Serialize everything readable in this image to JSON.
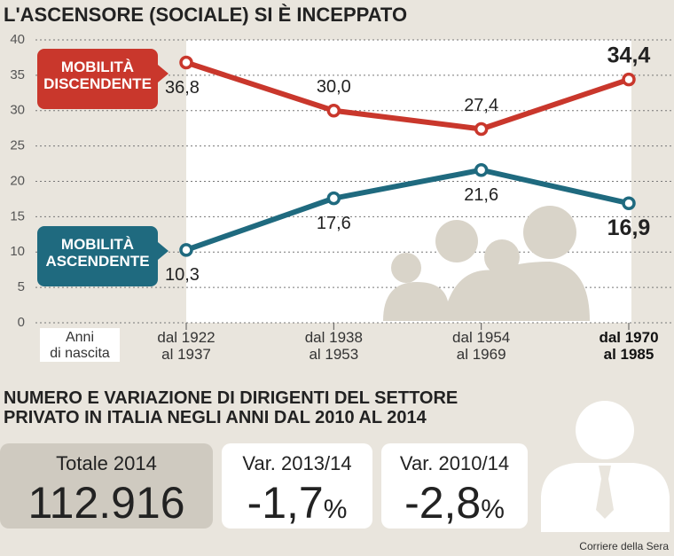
{
  "chart_data": {
    "type": "line",
    "title": "L'ASCENSORE (SOCIALE) SI È INCEPPATO",
    "xlabel": "Anni\ndi nascita",
    "categories": [
      "dal 1922\nal 1937",
      "dal 1938\nal 1953",
      "dal 1954\nal 1969",
      "dal 1970\nal 1985"
    ],
    "series": [
      {
        "name": "MOBILITÀ\nDISCENDENTE",
        "color": "#c9372c",
        "values": [
          36.8,
          30.0,
          27.4,
          34.4
        ],
        "value_labels": [
          "36,8",
          "30,0",
          "27,4",
          "34,4"
        ]
      },
      {
        "name": "MOBILITÀ\nASCENDENTE",
        "color": "#1f6a7f",
        "values": [
          10.3,
          17.6,
          21.6,
          16.9
        ],
        "value_labels": [
          "10,3",
          "17,6",
          "21,6",
          "16,9"
        ]
      }
    ],
    "ylim": [
      0,
      40
    ],
    "yticks": [
      0,
      5,
      10,
      15,
      20,
      25,
      30,
      35,
      40
    ],
    "grid": true
  },
  "stats": {
    "title": "NUMERO E VARIAZIONE DI DIRIGENTI DEL SETTORE\nPRIVATO IN ITALIA NEGLI ANNI DAL 2010 AL 2014",
    "boxes": [
      {
        "label": "Totale 2014",
        "value": "112.916"
      },
      {
        "label": "Var. 2013/14",
        "value": "-1,7",
        "unit": "%"
      },
      {
        "label": "Var. 2010/14",
        "value": "-2,8",
        "unit": "%"
      }
    ]
  },
  "source": "Corriere della Sera"
}
